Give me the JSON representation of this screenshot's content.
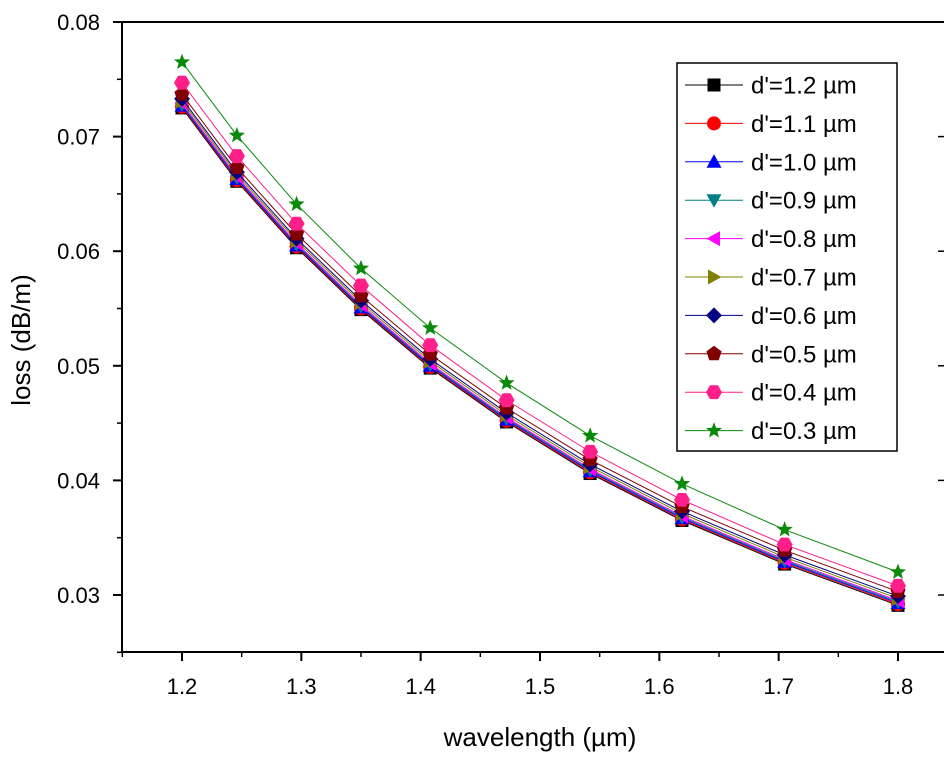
{
  "chart_data": {
    "type": "line",
    "xlabel": "wavelength (µm)",
    "ylabel": "loss (dB/m)",
    "xlim": [
      1.15,
      1.82
    ],
    "ylim": [
      0.025,
      0.08
    ],
    "x_ticks": [
      1.2,
      1.3,
      1.4,
      1.5,
      1.6,
      1.7,
      1.8
    ],
    "y_ticks": [
      0.03,
      0.04,
      0.05,
      0.06,
      0.07,
      0.08
    ],
    "x_tick_labels": [
      "1.2",
      "1.3",
      "1.4",
      "1.5",
      "1.6",
      "1.7",
      "1.8"
    ],
    "y_tick_labels": [
      "0.03",
      "0.04",
      "0.05",
      "0.06",
      "0.07",
      "0.08"
    ],
    "grid": false,
    "legend_position": "top-right",
    "x": [
      1.2,
      1.246,
      1.296,
      1.35,
      1.408,
      1.472,
      1.542,
      1.619,
      1.705,
      1.8
    ],
    "series": [
      {
        "name": "d'=1.2 µm",
        "marker": "square",
        "color": "#000000",
        "values": [
          0.0725,
          0.0661,
          0.0603,
          0.0549,
          0.0498,
          0.0451,
          0.0406,
          0.0365,
          0.0327,
          0.0291
        ]
      },
      {
        "name": "d'=1.1 µm",
        "marker": "circle",
        "color": "#ff0000",
        "values": [
          0.0726,
          0.0662,
          0.0604,
          0.055,
          0.0499,
          0.0452,
          0.0407,
          0.0366,
          0.0328,
          0.0292
        ]
      },
      {
        "name": "d'=1.0 µm",
        "marker": "triangle-up",
        "color": "#0000ff",
        "values": [
          0.0727,
          0.0663,
          0.0605,
          0.0551,
          0.05,
          0.0453,
          0.0408,
          0.0367,
          0.0329,
          0.0293
        ]
      },
      {
        "name": "d'=0.9 µm",
        "marker": "triangle-down",
        "color": "#008080",
        "values": [
          0.0728,
          0.0664,
          0.0606,
          0.0552,
          0.0501,
          0.0454,
          0.0409,
          0.0368,
          0.033,
          0.0294
        ]
      },
      {
        "name": "d'=0.8 µm",
        "marker": "triangle-left",
        "color": "#ff00ff",
        "values": [
          0.0729,
          0.0665,
          0.0607,
          0.0553,
          0.0502,
          0.0455,
          0.041,
          0.0369,
          0.0331,
          0.0295
        ]
      },
      {
        "name": "d'=0.7 µm",
        "marker": "triangle-right",
        "color": "#808000",
        "values": [
          0.0731,
          0.0667,
          0.0609,
          0.0555,
          0.0504,
          0.0457,
          0.0412,
          0.0371,
          0.0333,
          0.0297
        ]
      },
      {
        "name": "d'=0.6 µm",
        "marker": "diamond",
        "color": "#000080",
        "values": [
          0.0733,
          0.0669,
          0.0611,
          0.0557,
          0.0506,
          0.0459,
          0.0414,
          0.0373,
          0.0335,
          0.0299
        ]
      },
      {
        "name": "d'=0.5 µm",
        "marker": "pentagon",
        "color": "#800000",
        "values": [
          0.0737,
          0.0673,
          0.0615,
          0.0561,
          0.051,
          0.0463,
          0.0418,
          0.0377,
          0.0339,
          0.0303
        ]
      },
      {
        "name": "d'=0.4 µm",
        "marker": "hexagon",
        "color": "#ff1f8a",
        "values": [
          0.0747,
          0.0683,
          0.0624,
          0.057,
          0.0518,
          0.047,
          0.0425,
          0.0383,
          0.0344,
          0.0308
        ]
      },
      {
        "name": "d'=0.3 µm",
        "marker": "star",
        "color": "#0a8a0a",
        "values": [
          0.0765,
          0.0701,
          0.0641,
          0.0585,
          0.0533,
          0.0485,
          0.0439,
          0.0397,
          0.0357,
          0.032
        ]
      }
    ]
  }
}
